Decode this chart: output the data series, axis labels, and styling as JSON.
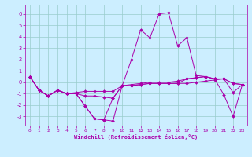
{
  "xlabel": "Windchill (Refroidissement éolien,°C)",
  "xlim": [
    -0.5,
    23.5
  ],
  "ylim": [
    -3.8,
    6.8
  ],
  "yticks": [
    -3,
    -2,
    -1,
    0,
    1,
    2,
    3,
    4,
    5,
    6
  ],
  "xticks": [
    0,
    1,
    2,
    3,
    4,
    5,
    6,
    7,
    8,
    9,
    10,
    11,
    12,
    13,
    14,
    15,
    16,
    17,
    18,
    19,
    20,
    21,
    22,
    23
  ],
  "bg_color": "#cceeff",
  "line_color": "#aa00aa",
  "grid_color": "#99cccc",
  "lines": [
    [
      0.5,
      -0.7,
      -1.2,
      -0.7,
      -1.0,
      -1.0,
      -2.1,
      -3.2,
      -3.3,
      -3.4,
      -0.3,
      2.0,
      4.6,
      3.9,
      6.0,
      6.1,
      3.2,
      3.9,
      0.6,
      0.5,
      0.3,
      -1.1,
      -3.0,
      -0.2
    ],
    [
      0.5,
      -0.7,
      -1.2,
      -0.7,
      -1.0,
      -1.0,
      -2.1,
      -3.2,
      -3.3,
      -1.4,
      -0.3,
      -0.3,
      -0.2,
      -0.1,
      -0.1,
      -0.1,
      -0.1,
      -0.1,
      0.0,
      0.1,
      0.2,
      0.3,
      -0.9,
      -0.2
    ],
    [
      0.5,
      -0.7,
      -1.2,
      -0.7,
      -1.0,
      -1.0,
      -1.2,
      -1.2,
      -1.3,
      -1.4,
      -0.3,
      -0.3,
      -0.2,
      -0.1,
      -0.1,
      -0.1,
      -0.1,
      0.3,
      0.4,
      0.5,
      0.3,
      0.3,
      -0.1,
      -0.2
    ],
    [
      0.5,
      -0.7,
      -1.2,
      -0.7,
      -1.0,
      -0.9,
      -0.8,
      -0.8,
      -0.8,
      -0.8,
      -0.3,
      -0.2,
      -0.1,
      0.0,
      0.0,
      0.0,
      0.1,
      0.3,
      0.4,
      0.5,
      0.3,
      0.3,
      -0.1,
      -0.2
    ]
  ]
}
